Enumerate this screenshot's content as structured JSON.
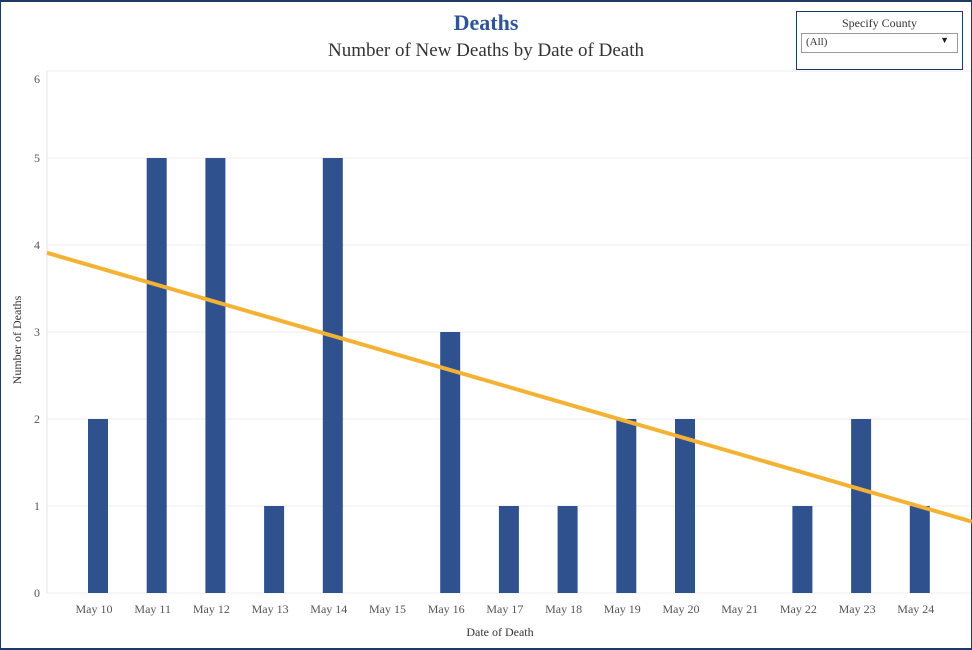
{
  "header": {
    "title": "Deaths",
    "subtitle": "Number of New Deaths by Date of Death"
  },
  "filter": {
    "label": "Specify County",
    "selected": "(All)",
    "icon": "dropdown-arrow-icon"
  },
  "colors": {
    "bar": "#2f528f",
    "trend": "#f4b235",
    "title": "#2f5597",
    "gridline": "#ececec"
  },
  "chart_data": {
    "type": "bar",
    "title": "Deaths",
    "subtitle": "Number of New Deaths by Date of Death",
    "xlabel": "Date of Death",
    "ylabel": "Number of Deaths",
    "categories": [
      "May 10",
      "May 11",
      "May 12",
      "May 13",
      "May 14",
      "May 15",
      "May 16",
      "May 17",
      "May 18",
      "May 19",
      "May 20",
      "May 21",
      "May 22",
      "May 23",
      "May 24"
    ],
    "values": [
      2,
      5,
      5,
      1,
      5,
      0,
      3,
      1,
      1,
      2,
      2,
      0,
      1,
      2,
      1
    ],
    "ylim": [
      0,
      6
    ],
    "yticks": [
      0,
      1,
      2,
      3,
      4,
      5,
      6
    ],
    "grid": true,
    "trend_line": {
      "type": "linear",
      "start_value": 3.91,
      "end_value": 0.82,
      "note": "values at left and right edges of plot"
    }
  }
}
